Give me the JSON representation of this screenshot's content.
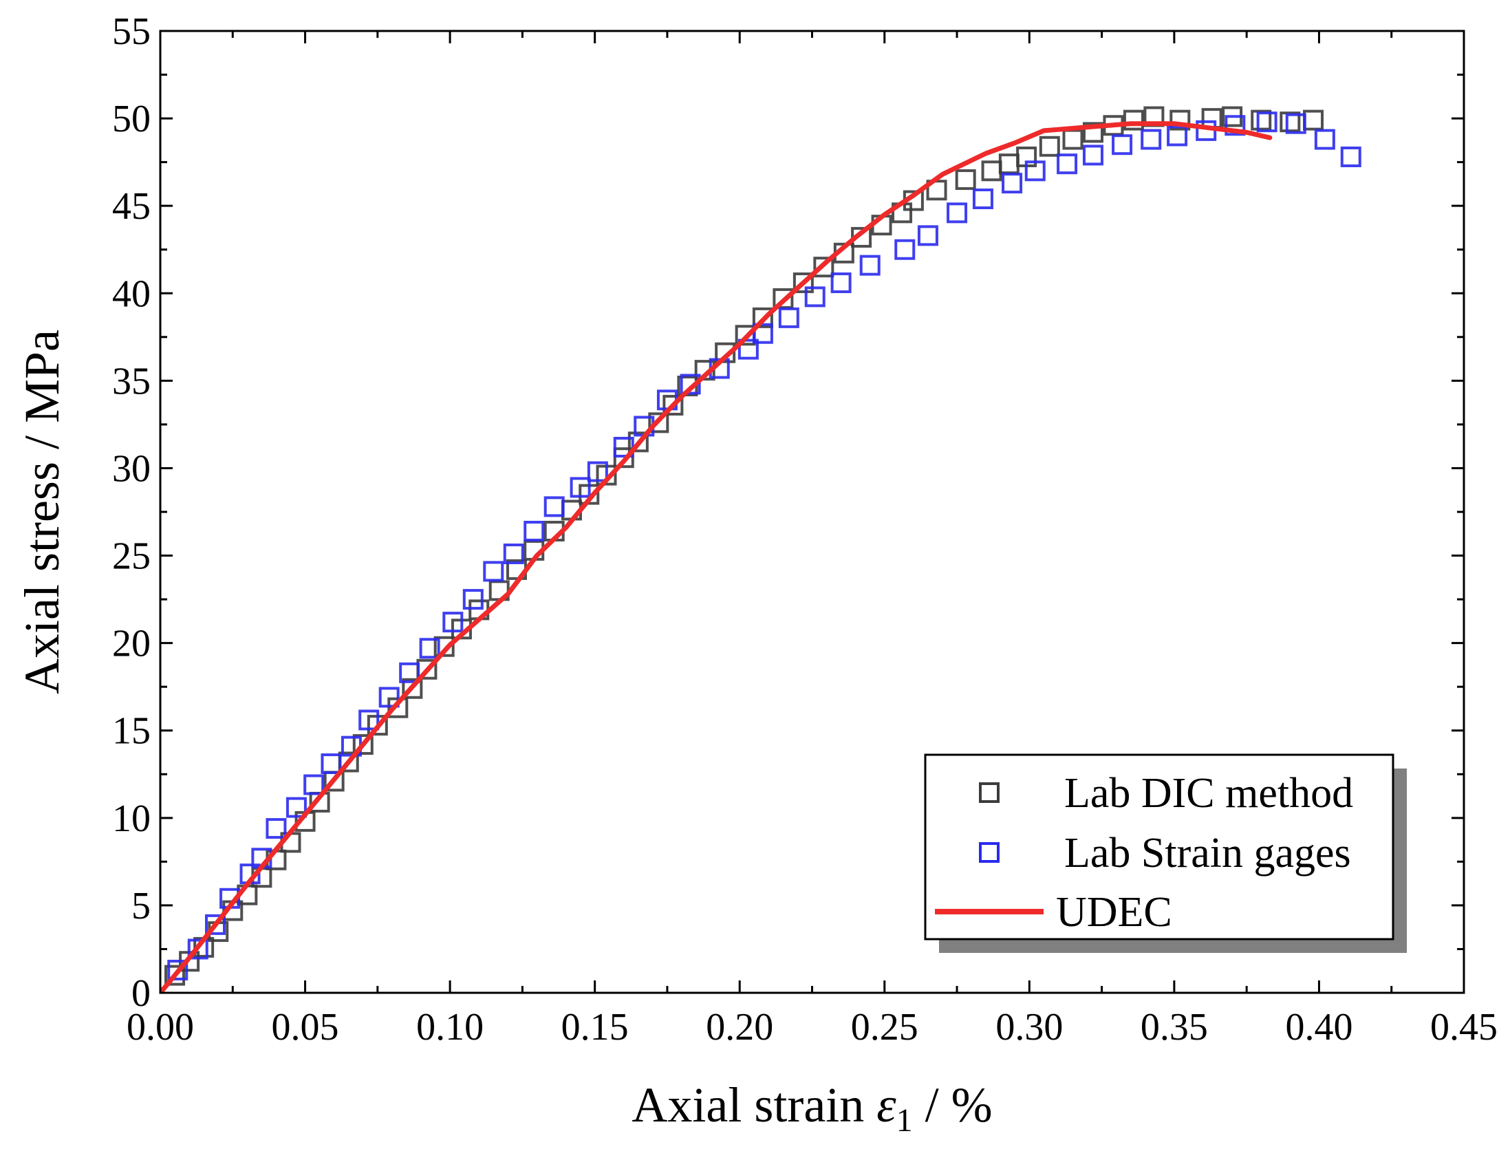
{
  "chart_data": {
    "type": "scatter",
    "title": "",
    "xlabel": {
      "prefix": "Axial strain ",
      "symbol": "ε",
      "subscript": "1",
      "suffix": " / %"
    },
    "ylabel": "Axial stress / MPa",
    "xlim": [
      0,
      0.45
    ],
    "ylim": [
      0,
      55
    ],
    "x_ticks": [
      "0.00",
      "0.05",
      "0.10",
      "0.15",
      "0.20",
      "0.25",
      "0.30",
      "0.35",
      "0.40",
      "0.45"
    ],
    "y_ticks": [
      "0",
      "5",
      "10",
      "15",
      "20",
      "25",
      "30",
      "35",
      "40",
      "45",
      "50",
      "55"
    ],
    "x_tick_values": [
      0,
      0.05,
      0.1,
      0.15,
      0.2,
      0.25,
      0.3,
      0.35,
      0.4,
      0.45
    ],
    "y_tick_values": [
      0,
      5,
      10,
      15,
      20,
      25,
      30,
      35,
      40,
      45,
      50,
      55
    ],
    "legend_position": "bottom-right",
    "series": [
      {
        "name": "Lab DIC method",
        "kind": "marker-square",
        "color": "#3c3c3c",
        "points": [
          [
            0.005,
            1.0
          ],
          [
            0.01,
            1.8
          ],
          [
            0.015,
            2.6
          ],
          [
            0.02,
            3.5
          ],
          [
            0.025,
            4.7
          ],
          [
            0.03,
            5.6
          ],
          [
            0.035,
            6.6
          ],
          [
            0.04,
            7.6
          ],
          [
            0.045,
            8.6
          ],
          [
            0.05,
            9.8
          ],
          [
            0.055,
            10.9
          ],
          [
            0.06,
            12.1
          ],
          [
            0.065,
            13.2
          ],
          [
            0.07,
            14.2
          ],
          [
            0.075,
            15.3
          ],
          [
            0.082,
            16.3
          ],
          [
            0.087,
            17.4
          ],
          [
            0.092,
            18.5
          ],
          [
            0.098,
            19.8
          ],
          [
            0.104,
            20.8
          ],
          [
            0.11,
            21.9
          ],
          [
            0.117,
            23.0
          ],
          [
            0.123,
            24.2
          ],
          [
            0.129,
            25.3
          ],
          [
            0.136,
            26.4
          ],
          [
            0.142,
            27.6
          ],
          [
            0.148,
            28.5
          ],
          [
            0.154,
            29.6
          ],
          [
            0.16,
            30.6
          ],
          [
            0.165,
            31.5
          ],
          [
            0.172,
            32.6
          ],
          [
            0.177,
            33.6
          ],
          [
            0.182,
            34.7
          ],
          [
            0.188,
            35.6
          ],
          [
            0.195,
            36.6
          ],
          [
            0.202,
            37.6
          ],
          [
            0.208,
            38.6
          ],
          [
            0.215,
            39.7
          ],
          [
            0.222,
            40.6
          ],
          [
            0.229,
            41.5
          ],
          [
            0.236,
            42.3
          ],
          [
            0.242,
            43.2
          ],
          [
            0.249,
            43.9
          ],
          [
            0.256,
            44.6
          ],
          [
            0.26,
            45.3
          ],
          [
            0.268,
            45.9
          ],
          [
            0.278,
            46.5
          ],
          [
            0.287,
            47.0
          ],
          [
            0.293,
            47.4
          ],
          [
            0.299,
            47.8
          ],
          [
            0.307,
            48.4
          ],
          [
            0.315,
            48.8
          ],
          [
            0.322,
            49.2
          ],
          [
            0.329,
            49.6
          ],
          [
            0.336,
            49.9
          ],
          [
            0.343,
            50.1
          ],
          [
            0.352,
            49.9
          ],
          [
            0.363,
            50.0
          ],
          [
            0.37,
            50.1
          ],
          [
            0.38,
            49.9
          ],
          [
            0.39,
            49.8
          ],
          [
            0.398,
            49.9
          ]
        ]
      },
      {
        "name": "Lab Strain gages",
        "kind": "marker-square",
        "color": "#2a2aee",
        "points": [
          [
            0.006,
            1.3
          ],
          [
            0.013,
            2.5
          ],
          [
            0.019,
            3.9
          ],
          [
            0.024,
            5.4
          ],
          [
            0.031,
            6.8
          ],
          [
            0.035,
            7.7
          ],
          [
            0.04,
            9.4
          ],
          [
            0.047,
            10.6
          ],
          [
            0.053,
            11.9
          ],
          [
            0.059,
            13.1
          ],
          [
            0.066,
            14.1
          ],
          [
            0.072,
            15.6
          ],
          [
            0.079,
            16.9
          ],
          [
            0.086,
            18.3
          ],
          [
            0.093,
            19.7
          ],
          [
            0.101,
            21.2
          ],
          [
            0.108,
            22.5
          ],
          [
            0.115,
            24.1
          ],
          [
            0.122,
            25.1
          ],
          [
            0.129,
            26.4
          ],
          [
            0.136,
            27.8
          ],
          [
            0.145,
            28.9
          ],
          [
            0.151,
            29.8
          ],
          [
            0.16,
            31.2
          ],
          [
            0.167,
            32.4
          ],
          [
            0.175,
            33.9
          ],
          [
            0.183,
            34.8
          ],
          [
            0.193,
            35.7
          ],
          [
            0.203,
            36.8
          ],
          [
            0.208,
            37.7
          ],
          [
            0.217,
            38.6
          ],
          [
            0.226,
            39.8
          ],
          [
            0.235,
            40.6
          ],
          [
            0.245,
            41.6
          ],
          [
            0.257,
            42.5
          ],
          [
            0.265,
            43.3
          ],
          [
            0.275,
            44.6
          ],
          [
            0.284,
            45.4
          ],
          [
            0.294,
            46.3
          ],
          [
            0.302,
            47.0
          ],
          [
            0.313,
            47.4
          ],
          [
            0.322,
            47.9
          ],
          [
            0.332,
            48.5
          ],
          [
            0.342,
            48.8
          ],
          [
            0.351,
            49.0
          ],
          [
            0.361,
            49.3
          ],
          [
            0.371,
            49.6
          ],
          [
            0.382,
            49.8
          ],
          [
            0.392,
            49.7
          ],
          [
            0.402,
            48.8
          ],
          [
            0.411,
            47.8
          ]
        ]
      },
      {
        "name": "UDEC",
        "kind": "line",
        "color": "#ee2a2a",
        "points": [
          [
            0.0,
            0.0
          ],
          [
            0.01,
            2.0
          ],
          [
            0.03,
            6.2
          ],
          [
            0.06,
            12.2
          ],
          [
            0.08,
            16.2
          ],
          [
            0.1,
            19.9
          ],
          [
            0.12,
            22.8
          ],
          [
            0.13,
            25.0
          ],
          [
            0.14,
            26.6
          ],
          [
            0.15,
            28.6
          ],
          [
            0.16,
            30.4
          ],
          [
            0.17,
            32.4
          ],
          [
            0.18,
            34.1
          ],
          [
            0.19,
            35.6
          ],
          [
            0.2,
            37.1
          ],
          [
            0.21,
            38.8
          ],
          [
            0.22,
            40.3
          ],
          [
            0.23,
            41.8
          ],
          [
            0.24,
            43.2
          ],
          [
            0.25,
            44.5
          ],
          [
            0.26,
            45.6
          ],
          [
            0.27,
            46.8
          ],
          [
            0.285,
            48.0
          ],
          [
            0.295,
            48.6
          ],
          [
            0.305,
            49.3
          ],
          [
            0.32,
            49.5
          ],
          [
            0.335,
            49.7
          ],
          [
            0.35,
            49.7
          ],
          [
            0.365,
            49.4
          ],
          [
            0.375,
            49.2
          ],
          [
            0.383,
            48.9
          ]
        ]
      }
    ]
  }
}
